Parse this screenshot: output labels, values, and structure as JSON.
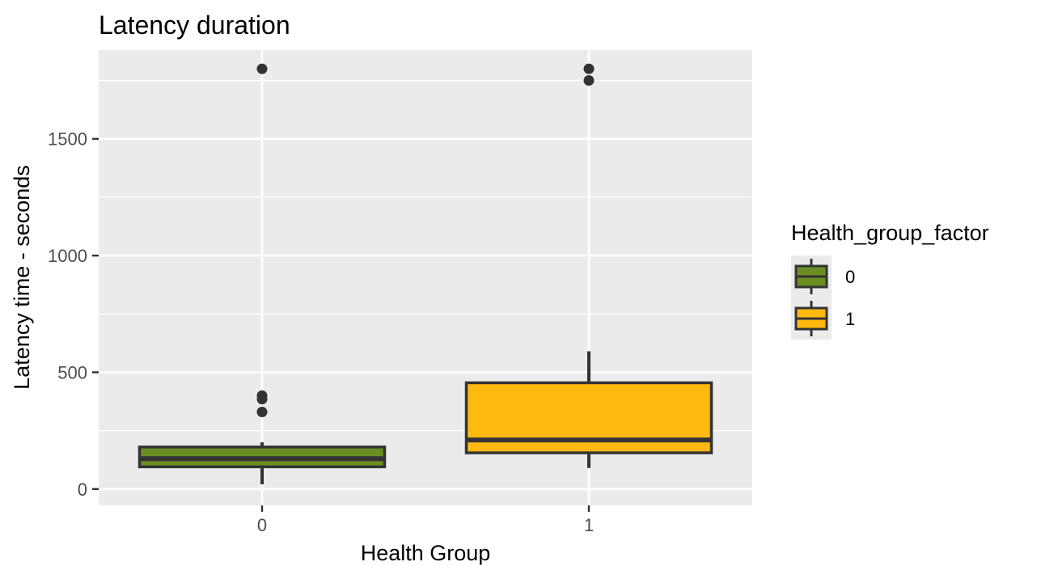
{
  "chart_data": {
    "type": "boxplot",
    "title": "Latency duration",
    "xlabel": "Health Group",
    "ylabel": "Latency time - seconds",
    "categories": [
      "0",
      "1"
    ],
    "ylim": [
      -70,
      1880
    ],
    "yticks": [
      0,
      500,
      1000,
      1500
    ],
    "grid": true,
    "legend": {
      "title": "Health_group_factor",
      "position": "right",
      "entries": [
        {
          "label": "0",
          "color": "#6b8e23"
        },
        {
          "label": "1",
          "color": "#ffb90f"
        }
      ]
    },
    "series": [
      {
        "category": "0",
        "color": "#6b8e23",
        "whisker_low": 20,
        "q1": 95,
        "median": 130,
        "q3": 180,
        "whisker_high": 200,
        "outliers": [
          1800,
          400,
          385,
          330
        ]
      },
      {
        "category": "1",
        "color": "#ffb90f",
        "whisker_low": 90,
        "q1": 155,
        "median": 210,
        "q3": 455,
        "whisker_high": 590,
        "outliers": [
          1800,
          1750
        ]
      }
    ],
    "colors": {
      "panel_background": "#ebebeb",
      "grid_line": "#ffffff",
      "box_outline": "#333333",
      "outlier": "#333333"
    }
  }
}
